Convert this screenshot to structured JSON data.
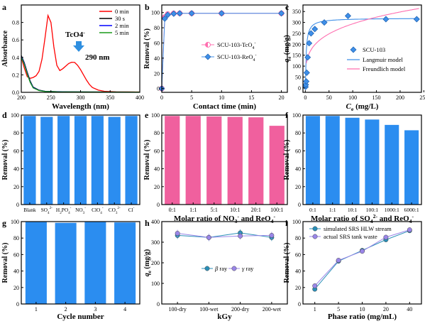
{
  "chart_data": [
    {
      "panel": "a",
      "type": "line",
      "xlabel": "Wavelength (nm)",
      "ylabel": "Absorbance",
      "xlim": [
        200,
        400
      ],
      "ylim": [
        0,
        1.0
      ],
      "xticks": [
        "200",
        "250",
        "300",
        "350",
        "400"
      ],
      "yticks": [
        "0.0",
        "0.2",
        "0.4",
        "0.6",
        "0.8"
      ],
      "annotations": [
        "TcO4",
        "290 nm"
      ],
      "annotation_superscript": "-",
      "legend": "top-right",
      "series": [
        {
          "name": "0 min",
          "color": "#ff0000",
          "x": [
            200,
            205,
            210,
            215,
            220,
            225,
            230,
            235,
            240,
            245,
            250,
            255,
            260,
            265,
            270,
            275,
            280,
            285,
            290,
            295,
            300,
            305,
            310,
            315,
            320,
            330,
            340,
            360,
            380,
            400
          ],
          "y": [
            0.4,
            0.28,
            0.18,
            0.16,
            0.17,
            0.19,
            0.24,
            0.38,
            0.62,
            0.88,
            0.8,
            0.52,
            0.31,
            0.25,
            0.27,
            0.3,
            0.33,
            0.345,
            0.342,
            0.31,
            0.26,
            0.2,
            0.14,
            0.09,
            0.055,
            0.025,
            0.012,
            0.006,
            0.005,
            0.004
          ]
        },
        {
          "name": "30 s",
          "color": "#000000",
          "x": [
            200,
            205,
            210,
            215,
            220,
            230,
            240,
            260,
            280,
            320,
            400
          ],
          "y": [
            0.42,
            0.34,
            0.23,
            0.13,
            0.06,
            0.025,
            0.012,
            0.008,
            0.006,
            0.004,
            0.003
          ]
        },
        {
          "name": "2 min",
          "color": "#0000ff",
          "x": [
            200,
            205,
            210,
            215,
            220,
            230,
            240,
            260,
            280,
            320,
            400
          ],
          "y": [
            0.41,
            0.33,
            0.22,
            0.12,
            0.055,
            0.022,
            0.011,
            0.007,
            0.005,
            0.004,
            0.003
          ]
        },
        {
          "name": "5 min",
          "color": "#1a9a1a",
          "x": [
            200,
            205,
            210,
            215,
            220,
            230,
            240,
            260,
            280,
            320,
            400
          ],
          "y": [
            0.4,
            0.32,
            0.21,
            0.115,
            0.05,
            0.02,
            0.01,
            0.006,
            0.005,
            0.004,
            0.003
          ]
        }
      ]
    },
    {
      "panel": "b",
      "type": "scatter",
      "xlabel": "Contact time (min)",
      "ylabel": "Removal (%)",
      "xlim": [
        0,
        21
      ],
      "ylim": [
        -5,
        110
      ],
      "xticks": [
        "0",
        "5",
        "10",
        "15",
        "20"
      ],
      "yticks": [
        "0",
        "20",
        "40",
        "60",
        "80",
        "100"
      ],
      "legend": "center-right",
      "series": [
        {
          "name": "SCU-103-TcO",
          "name_sub": "4",
          "name_sup": "-",
          "color": "#ff6fb0",
          "x": [
            0,
            0.5,
            1,
            2,
            3,
            5,
            10,
            20
          ],
          "y": [
            0,
            94,
            98,
            99,
            99,
            99,
            99,
            99
          ]
        },
        {
          "name": "SCU-103-ReO",
          "name_sub": "4",
          "name_sup": "-",
          "color": "#3f8fe8",
          "x": [
            0,
            0.5,
            1,
            2,
            3,
            5,
            10,
            20
          ],
          "y": [
            0,
            92,
            97,
            98.5,
            99,
            99,
            99,
            99
          ]
        }
      ]
    },
    {
      "panel": "c",
      "type": "scatter",
      "xlabel_main": "C",
      "xlabel_sub": "e",
      "xlabel_unit": " (mg/L)",
      "ylabel_main": "q",
      "ylabel_sub": "e",
      "ylabel_unit": " (mg/g)",
      "xlim": [
        -5,
        245
      ],
      "ylim": [
        -20,
        380
      ],
      "xticks": [
        "0",
        "50",
        "100",
        "150",
        "200",
        "250"
      ],
      "yticks": [
        "0",
        "50",
        "100",
        "150",
        "200",
        "250",
        "300",
        "350"
      ],
      "legend": "center-right",
      "series": [
        {
          "name": "SCU-103",
          "color": "#3f8fe8",
          "x": [
            0.5,
            1,
            2,
            3,
            5,
            8,
            12,
            20,
            40,
            90,
            170,
            235
          ],
          "y": [
            5,
            15,
            30,
            70,
            140,
            205,
            250,
            270,
            300,
            330,
            315,
            315
          ]
        },
        {
          "name": "Langmuir model",
          "color": "#3f8fe8",
          "fit": "langmuir"
        },
        {
          "name": "Freundlich model",
          "color": "#ff6fb0",
          "fit": "freundlich"
        }
      ]
    },
    {
      "panel": "d",
      "type": "bar",
      "ylabel": "Removal (%)",
      "ylim": [
        0,
        100
      ],
      "yticks": [
        "0",
        "20",
        "40",
        "60",
        "80",
        "100"
      ],
      "categories": [
        {
          "main": "Blank"
        },
        {
          "main": "SO",
          "sub": "4",
          "sup": "2-"
        },
        {
          "main": "H",
          "sub": "2",
          "main2": "PO",
          "sub2": "4",
          "sup": "-"
        },
        {
          "main": "NO",
          "sub": "3",
          "sup": "-"
        },
        {
          "main": "ClO",
          "sub": "4",
          "sup": "-"
        },
        {
          "main": "CO",
          "sub": "3",
          "sup": "2-"
        },
        {
          "main": "Cl",
          "sup": "-"
        }
      ],
      "values": [
        99,
        98,
        99,
        99,
        99,
        98,
        99
      ],
      "color": "#2b8df0"
    },
    {
      "panel": "e",
      "type": "bar",
      "xlabel_parts": {
        "a": "Molar ratio of NO",
        "a_sub": "3",
        "a_sup": "-",
        "b": " and ReO",
        "b_sub": "4",
        "b_sup": "-"
      },
      "ylabel": "Removal (%)",
      "ylim": [
        0,
        100
      ],
      "yticks": [
        "0",
        "20",
        "40",
        "60",
        "80",
        "100"
      ],
      "categories": [
        "0:1",
        "1:1",
        "5:1",
        "10:1",
        "20:1",
        "100:1"
      ],
      "values": [
        99,
        99,
        98.5,
        98,
        97.5,
        88
      ],
      "color": "#f0609e"
    },
    {
      "panel": "f",
      "type": "bar",
      "xlabel_parts": {
        "a": "Molar ratio of SO",
        "a_sub": "4",
        "a_sup": "2-",
        "b": " and ReO",
        "b_sub": "4",
        "b_sup": "-"
      },
      "ylabel": "Removal (%)",
      "ylim": [
        0,
        100
      ],
      "yticks": [
        "0",
        "20",
        "40",
        "60",
        "80",
        "100"
      ],
      "categories": [
        "0:1",
        "1:1",
        "10:1",
        "100:1",
        "1000:1",
        "6000:1"
      ],
      "values": [
        99,
        99,
        97,
        95,
        89,
        83
      ],
      "color": "#2b8df0"
    },
    {
      "panel": "g",
      "type": "bar",
      "xlabel": "Cycle number",
      "ylabel": "Removal (%)",
      "ylim": [
        0,
        100
      ],
      "yticks": [
        "0",
        "20",
        "40",
        "60",
        "80",
        "100"
      ],
      "categories": [
        "1",
        "2",
        "3",
        "4"
      ],
      "values": [
        99.5,
        98.5,
        99.5,
        99
      ],
      "color": "#2b8df0"
    },
    {
      "panel": "h",
      "type": "line",
      "xlabel": "kGy",
      "ylabel_main": "q",
      "ylabel_sub": "e",
      "ylabel_unit": " (mg/g)",
      "ylim": [
        0,
        400
      ],
      "yticks": [
        "0",
        "100",
        "200",
        "300",
        "400"
      ],
      "categories": [
        "100-dry",
        "100-wet",
        "200-dry",
        "200-wet"
      ],
      "legend": "center-right",
      "series": [
        {
          "name": "ray",
          "greek": "β",
          "color": "#2a8fb8",
          "values": [
            333,
            323,
            345,
            323
          ]
        },
        {
          "name": "ray",
          "greek": "γ",
          "color": "#9a86e8",
          "values": [
            343,
            323,
            330,
            333
          ]
        }
      ]
    },
    {
      "panel": "i",
      "type": "line",
      "xlabel": "Phase ratio (mg/mL)",
      "ylabel": "Removal (%)",
      "ylim": [
        0,
        100
      ],
      "yticks": [
        "0",
        "20",
        "40",
        "60",
        "80",
        "100"
      ],
      "categories": [
        "1",
        "5",
        "10",
        "20",
        "40"
      ],
      "legend": "top-left",
      "series": [
        {
          "name": "simulated SRS HLW stream",
          "color": "#2a8fb8",
          "values": [
            18,
            52,
            65,
            78,
            89
          ]
        },
        {
          "name": "actual SRS tank waste",
          "color": "#9a86e8",
          "values": [
            22,
            53,
            64,
            81,
            90
          ]
        }
      ]
    }
  ]
}
